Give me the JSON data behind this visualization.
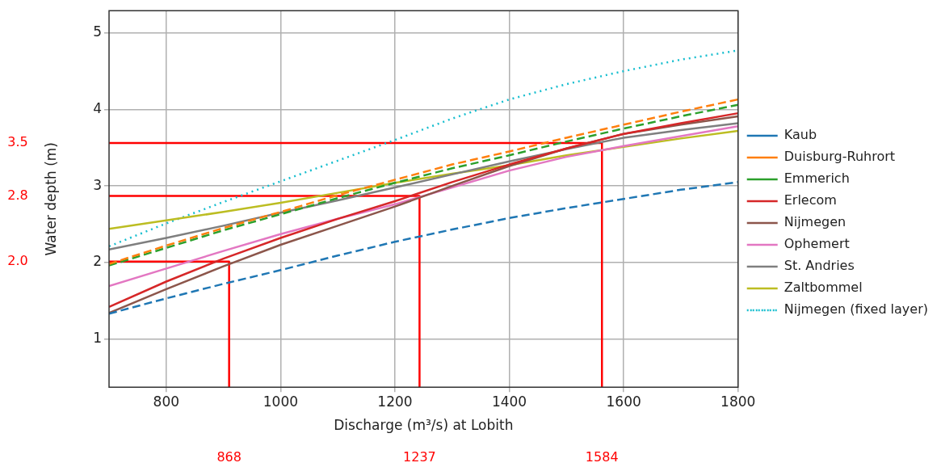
{
  "chart_data": {
    "type": "line",
    "xlabel": "Discharge (m³/s) at Lobith",
    "ylabel": "Water depth (m)",
    "x": [
      700,
      800,
      900,
      1000,
      1100,
      1200,
      1300,
      1400,
      1500,
      1600,
      1700,
      1800
    ],
    "series": [
      {
        "name": "Kaub",
        "color": "#1f77b4",
        "line_style": "dashed",
        "values": [
          1.33,
          1.53,
          1.72,
          1.9,
          2.09,
          2.27,
          2.43,
          2.58,
          2.71,
          2.83,
          2.95,
          3.05
        ]
      },
      {
        "name": "Duisburg-Ruhrort",
        "color": "#ff7f0e",
        "line_style": "dashed",
        "values": [
          1.98,
          2.22,
          2.45,
          2.66,
          2.88,
          3.08,
          3.28,
          3.45,
          3.63,
          3.8,
          3.97,
          4.13
        ]
      },
      {
        "name": "Emmerich",
        "color": "#2ca02c",
        "line_style": "dashed",
        "values": [
          1.96,
          2.19,
          2.42,
          2.63,
          2.84,
          3.04,
          3.23,
          3.4,
          3.58,
          3.75,
          3.91,
          4.06
        ]
      },
      {
        "name": "Erlecom",
        "color": "#d62728",
        "line_style": "solid",
        "values": [
          1.42,
          1.75,
          2.05,
          2.32,
          2.57,
          2.8,
          3.05,
          3.28,
          3.49,
          3.68,
          3.82,
          3.95
        ]
      },
      {
        "name": "Nijmegen",
        "color": "#8c564b",
        "line_style": "solid",
        "values": [
          1.34,
          1.65,
          1.95,
          2.23,
          2.48,
          2.73,
          3.0,
          3.26,
          3.49,
          3.68,
          3.8,
          3.91
        ]
      },
      {
        "name": "Ophemert",
        "color": "#e377c2",
        "line_style": "solid",
        "values": [
          1.69,
          1.92,
          2.15,
          2.37,
          2.57,
          2.76,
          2.98,
          3.2,
          3.38,
          3.52,
          3.65,
          3.78
        ]
      },
      {
        "name": "St. Andries",
        "color": "#7f7f7f",
        "line_style": "solid",
        "values": [
          2.17,
          2.32,
          2.48,
          2.65,
          2.81,
          2.98,
          3.15,
          3.32,
          3.48,
          3.63,
          3.73,
          3.82
        ]
      },
      {
        "name": "Zaltbommel",
        "color": "#bcbd22",
        "line_style": "solid",
        "values": [
          2.44,
          2.55,
          2.66,
          2.78,
          2.91,
          3.04,
          3.16,
          3.27,
          3.4,
          3.51,
          3.62,
          3.72
        ]
      },
      {
        "name": "Nijmegen (fixed layer)",
        "color": "#17becf",
        "line_style": "dotted",
        "values": [
          2.21,
          2.51,
          2.79,
          3.06,
          3.33,
          3.6,
          3.88,
          4.13,
          4.33,
          4.5,
          4.65,
          4.77
        ]
      },
      {
        "color": "#ff0000",
        "line_style": "solid",
        "x": [
          700,
          910,
          910
        ],
        "values": [
          2.01,
          2.01,
          0.37
        ]
      },
      {
        "color": "#ff0000",
        "line_style": "solid",
        "x": [
          700,
          1243,
          1243
        ],
        "values": [
          2.87,
          2.87,
          0.37
        ]
      },
      {
        "color": "#ff0000",
        "line_style": "solid",
        "x": [
          700,
          1562,
          1562
        ],
        "values": [
          3.56,
          3.56,
          0.37
        ]
      }
    ],
    "xlim": [
      700,
      1800
    ],
    "xticks": [
      800,
      1000,
      1200,
      1400,
      1600,
      1800
    ],
    "ylim": [
      0.37,
      5.29
    ],
    "yticks": [
      1,
      2,
      3,
      4,
      5
    ],
    "grid": true,
    "legend": "right",
    "marker": "none",
    "annotations": [
      "2.0",
      "868",
      "2.8",
      "1237",
      "3.5",
      "1584"
    ]
  }
}
